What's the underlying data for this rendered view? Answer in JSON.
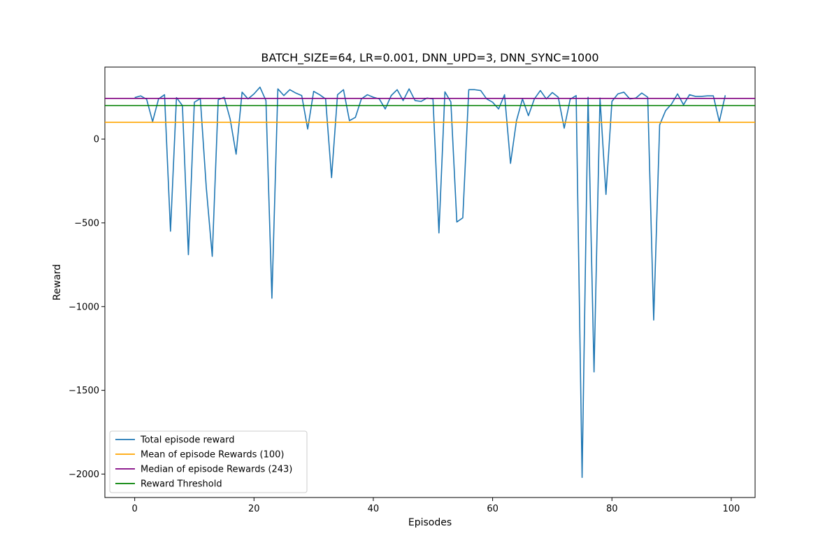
{
  "chart_data": {
    "type": "line",
    "title": "BATCH_SIZE=64, LR=0.001, DNN_UPD=3, DNN_SYNC=1000",
    "xlabel": "Episodes",
    "ylabel": "Reward",
    "xlim": [
      -5,
      104
    ],
    "ylim": [
      -2140,
      430
    ],
    "xticks": [
      0,
      20,
      40,
      60,
      80,
      100
    ],
    "yticks": [
      0,
      -500,
      -1000,
      -1500,
      -2000
    ],
    "ytick_labels": [
      "0",
      "−500",
      "−1000",
      "−1500",
      "−2000"
    ],
    "legend_position": "lower-left",
    "series": [
      {
        "name": "Total episode reward",
        "color": "#1f77b4",
        "x": [
          0,
          1,
          2,
          3,
          4,
          5,
          6,
          7,
          8,
          9,
          10,
          11,
          12,
          13,
          14,
          15,
          16,
          17,
          18,
          19,
          20,
          21,
          22,
          23,
          24,
          25,
          26,
          27,
          28,
          29,
          30,
          31,
          32,
          33,
          34,
          35,
          36,
          37,
          38,
          39,
          40,
          41,
          42,
          43,
          44,
          45,
          46,
          47,
          48,
          49,
          50,
          51,
          52,
          53,
          54,
          55,
          56,
          57,
          58,
          59,
          60,
          61,
          62,
          63,
          64,
          65,
          66,
          67,
          68,
          69,
          70,
          71,
          72,
          73,
          74,
          75,
          76,
          77,
          78,
          79,
          80,
          81,
          82,
          83,
          84,
          85,
          86,
          87,
          88,
          89,
          90,
          91,
          92,
          93,
          94,
          95,
          96,
          97,
          98,
          99
        ],
        "y": [
          248,
          258,
          238,
          105,
          240,
          265,
          -550,
          248,
          200,
          -690,
          220,
          242,
          -290,
          -700,
          235,
          250,
          120,
          -90,
          280,
          240,
          270,
          310,
          230,
          -950,
          300,
          260,
          295,
          275,
          260,
          60,
          285,
          265,
          240,
          -230,
          265,
          295,
          110,
          130,
          240,
          265,
          250,
          240,
          180,
          260,
          295,
          230,
          300,
          230,
          225,
          245,
          240,
          -560,
          282,
          222,
          -495,
          -470,
          295,
          295,
          290,
          240,
          220,
          180,
          265,
          -145,
          110,
          240,
          140,
          240,
          290,
          240,
          278,
          250,
          65,
          238,
          260,
          -2020,
          250,
          -1390,
          245,
          -330,
          225,
          270,
          280,
          240,
          245,
          275,
          250,
          -1080,
          85,
          170,
          210,
          270,
          205,
          265,
          255,
          255,
          258,
          258,
          105,
          262
        ]
      },
      {
        "name": "Mean of episode Rewards (100)",
        "color": "#ffa500",
        "value": 100,
        "horizontal": true
      },
      {
        "name": "Median of episode Rewards (243)",
        "color": "#800080",
        "value": 243,
        "horizontal": true
      },
      {
        "name": "Reward Threshold",
        "color": "#008000",
        "value": 200,
        "horizontal": true
      }
    ]
  }
}
